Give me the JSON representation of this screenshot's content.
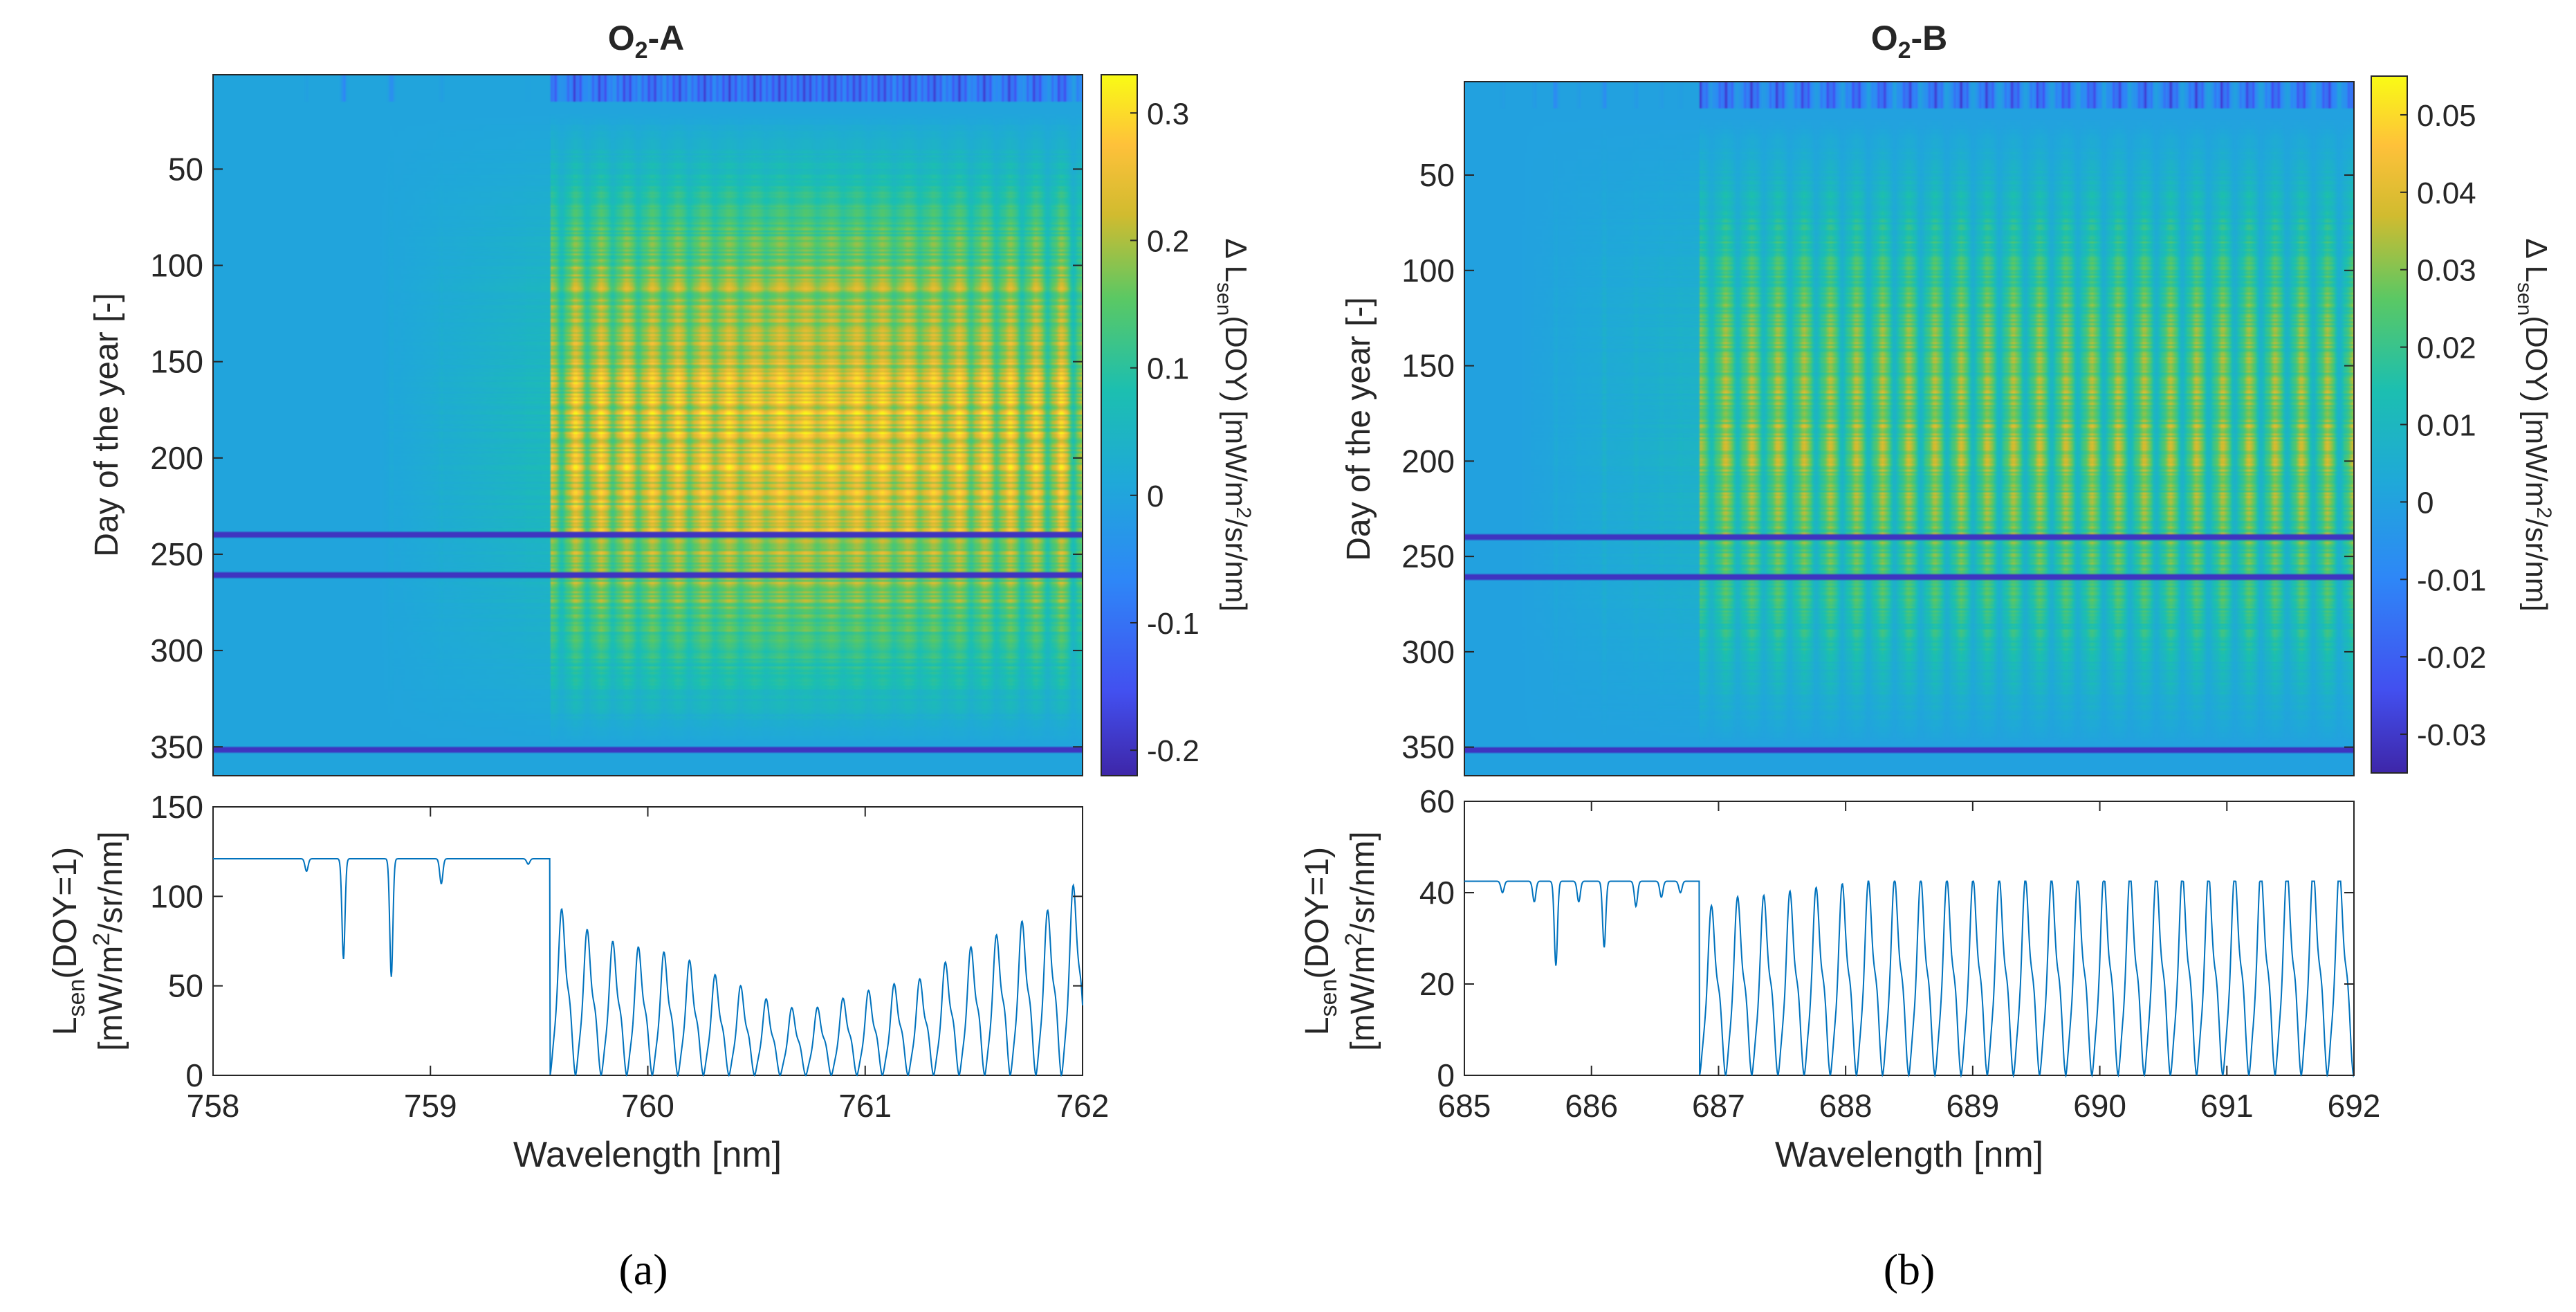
{
  "colors": {
    "heat_low": "#3e26a8",
    "heat_mid": "#1fa9d8",
    "heat_high": "#f9fb15",
    "line": "#0072bd",
    "axis": "#262626",
    "band": "#2b2a9a"
  },
  "highlight_days": [
    240,
    261,
    352
  ],
  "chart_data": [
    {
      "panel": "a",
      "caption": "(a)",
      "heatmap": {
        "type": "heatmap",
        "title_main": "O",
        "title_sub": "2",
        "title_suffix": "-A",
        "ylabel": "Day of the year [-]",
        "yticks": [
          50,
          100,
          150,
          200,
          250,
          300,
          350
        ],
        "yticklabels": [
          "50",
          "100",
          "150",
          "200",
          "250",
          "300",
          "350"
        ],
        "ylim": [
          1,
          365
        ],
        "xlim": [
          758,
          762
        ],
        "colorbar": {
          "clim": [
            -0.22,
            0.33
          ],
          "ticks": [
            0.3,
            0.2,
            0.1,
            0,
            -0.1,
            -0.2
          ],
          "ticklabels": [
            "0.3",
            "0.2",
            "0.1",
            "0",
            "-0.1",
            "-0.2"
          ],
          "label_prefix": "Δ L",
          "label_sub": "sen",
          "label_mid": "(DOY) [mW/m",
          "label_sup": "2",
          "label_suffix": "/sr/nm]"
        },
        "absorption_start_nm": 759.55,
        "peak_value": 0.28
      },
      "line": {
        "type": "line",
        "ylabel_top": "L",
        "ylabel_sub": "sen",
        "ylabel_rest": "(DOY=1)",
        "ylabel_bottom_pre": "[mW/m",
        "ylabel_bottom_sup": "2",
        "ylabel_bottom_post": "/sr/nm]",
        "xlabel": "Wavelength [nm]",
        "xlim": [
          758,
          762
        ],
        "ylim": [
          0,
          150
        ],
        "xticks": [
          758,
          759,
          760,
          761,
          762
        ],
        "xticklabels": [
          "758",
          "759",
          "760",
          "761",
          "762"
        ],
        "yticks": [
          0,
          50,
          100,
          150
        ],
        "yticklabels": [
          "0",
          "50",
          "100",
          "150"
        ],
        "continuum": 121,
        "dips": [
          {
            "x": 758.43,
            "y": 114
          },
          {
            "x": 758.6,
            "y": 65
          },
          {
            "x": 758.82,
            "y": 55
          },
          {
            "x": 759.05,
            "y": 107
          },
          {
            "x": 759.45,
            "y": 118
          }
        ],
        "band_start": 759.55,
        "band_peaks": [
          {
            "x": 759.62,
            "y": 95
          },
          {
            "x": 759.75,
            "y": 80
          },
          {
            "x": 759.88,
            "y": 75
          },
          {
            "x": 760.02,
            "y": 72
          },
          {
            "x": 760.16,
            "y": 68
          },
          {
            "x": 760.3,
            "y": 58
          },
          {
            "x": 760.45,
            "y": 50
          },
          {
            "x": 760.6,
            "y": 40
          },
          {
            "x": 760.74,
            "y": 37
          },
          {
            "x": 760.87,
            "y": 43
          },
          {
            "x": 761.0,
            "y": 48
          },
          {
            "x": 761.12,
            "y": 52
          },
          {
            "x": 761.25,
            "y": 55
          },
          {
            "x": 761.36,
            "y": 64
          },
          {
            "x": 761.48,
            "y": 73
          },
          {
            "x": 761.6,
            "y": 80
          },
          {
            "x": 761.72,
            "y": 88
          },
          {
            "x": 761.82,
            "y": 93
          },
          {
            "x": 761.92,
            "y": 100
          },
          {
            "x": 761.98,
            "y": 114
          }
        ]
      }
    },
    {
      "panel": "b",
      "caption": "(b)",
      "heatmap": {
        "type": "heatmap",
        "title_main": "O",
        "title_sub": "2",
        "title_suffix": "-B",
        "ylabel": "Day of the year [-]",
        "yticks": [
          50,
          100,
          150,
          200,
          250,
          300,
          350
        ],
        "yticklabels": [
          "50",
          "100",
          "150",
          "200",
          "250",
          "300",
          "350"
        ],
        "ylim": [
          1,
          365
        ],
        "xlim": [
          685,
          692
        ],
        "colorbar": {
          "clim": [
            -0.035,
            0.055
          ],
          "ticks": [
            0.05,
            0.04,
            0.03,
            0.02,
            0.01,
            0,
            -0.01,
            -0.02,
            -0.03
          ],
          "ticklabels": [
            "0.05",
            "0.04",
            "0.03",
            "0.02",
            "0.01",
            "0",
            "-0.01",
            "-0.02",
            "-0.03"
          ],
          "label_prefix": "Δ L",
          "label_sub": "sen",
          "label_mid": "(DOY) [mW/m",
          "label_sup": "2",
          "label_suffix": "/sr/nm]"
        },
        "absorption_start_nm": 686.85,
        "peak_value": 0.035
      },
      "line": {
        "type": "line",
        "ylabel_top": "L",
        "ylabel_sub": "sen",
        "ylabel_rest": "(DOY=1)",
        "ylabel_bottom_pre": "[mW/m",
        "ylabel_bottom_sup": "2",
        "ylabel_bottom_post": "/sr/nm]",
        "xlabel": "Wavelength [nm]",
        "xlim": [
          685,
          692
        ],
        "ylim": [
          0,
          60
        ],
        "xticks": [
          685,
          686,
          687,
          688,
          689,
          690,
          691,
          692
        ],
        "xticklabels": [
          "685",
          "686",
          "687",
          "688",
          "689",
          "690",
          "691",
          "692"
        ],
        "yticks": [
          0,
          20,
          40,
          60
        ],
        "yticklabels": [
          "0",
          "20",
          "40",
          "60"
        ],
        "continuum": 42.5,
        "dips": [
          {
            "x": 685.3,
            "y": 40
          },
          {
            "x": 685.55,
            "y": 38
          },
          {
            "x": 685.72,
            "y": 24
          },
          {
            "x": 685.9,
            "y": 38
          },
          {
            "x": 686.1,
            "y": 28
          },
          {
            "x": 686.35,
            "y": 37
          },
          {
            "x": 686.55,
            "y": 39
          },
          {
            "x": 686.7,
            "y": 40
          }
        ],
        "band_start": 686.85,
        "band_peaks": [
          {
            "x": 686.95,
            "y": 38
          },
          {
            "x": 687.1,
            "y": 40
          },
          {
            "x": 687.3,
            "y": 40
          },
          {
            "x": 687.5,
            "y": 41
          },
          {
            "x": 687.75,
            "y": 42
          },
          {
            "x": 688.0,
            "y": 43
          },
          {
            "x": 688.3,
            "y": 44
          },
          {
            "x": 688.6,
            "y": 44
          },
          {
            "x": 688.9,
            "y": 44
          },
          {
            "x": 689.2,
            "y": 44
          },
          {
            "x": 689.5,
            "y": 44
          },
          {
            "x": 689.8,
            "y": 44
          },
          {
            "x": 690.1,
            "y": 45
          },
          {
            "x": 690.4,
            "y": 45
          },
          {
            "x": 690.7,
            "y": 45
          },
          {
            "x": 691.0,
            "y": 45
          },
          {
            "x": 691.3,
            "y": 46
          },
          {
            "x": 691.6,
            "y": 46
          },
          {
            "x": 691.9,
            "y": 46
          }
        ]
      }
    }
  ]
}
